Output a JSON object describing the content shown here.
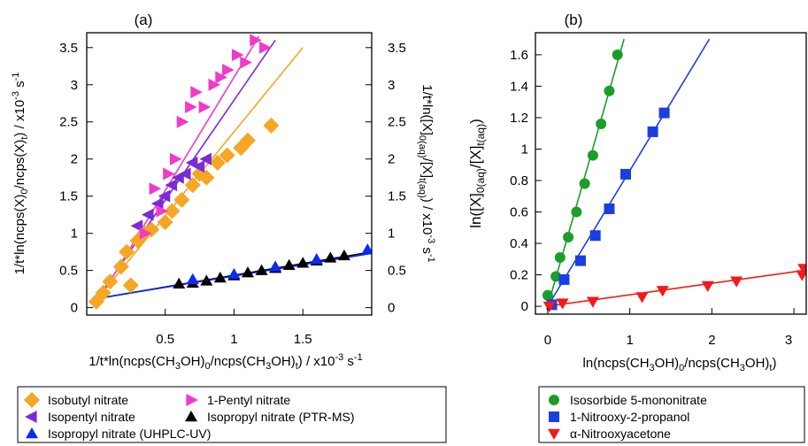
{
  "chart_data": [
    {
      "type": "scatter",
      "panel_label": "(a)",
      "xlabel": "1/t*ln(ncps(CH₃OH)₀/ncps(CH₃OH)ₜ) / x10⁻³ s⁻¹",
      "ylabel_left": "1/t*ln(ncps(X)₀/ncps(X)ₜ) / x10⁻³ s⁻¹",
      "ylabel_right": "1/t*ln([X]₀₍ₐq₎/[X]ₜ₍ₐq₎) / x10⁻³ s⁻¹",
      "xlim": [
        -0.07,
        2.0
      ],
      "ylim": [
        -0.1,
        3.7
      ],
      "xticks": [
        0.5,
        1.0,
        1.5
      ],
      "xtick_labels": [
        "0.5",
        "1",
        "1.5"
      ],
      "yticks": [
        0,
        0.5,
        1,
        1.5,
        2,
        2.5,
        3,
        3.5
      ],
      "ytick_labels": [
        "0",
        "0.5",
        "1",
        "1.5",
        "2",
        "2.5",
        "3",
        "3.5"
      ],
      "series": [
        {
          "name": "Isobutyl nitrate",
          "marker": "diamond",
          "color": "#F5A623",
          "x": [
            0.0,
            0.05,
            0.1,
            0.18,
            0.22,
            0.25,
            0.3,
            0.35,
            0.4,
            0.5,
            0.55,
            0.62,
            0.7,
            0.75,
            0.8,
            0.88,
            0.95,
            1.05,
            1.1,
            1.27
          ],
          "y": [
            0.08,
            0.2,
            0.35,
            0.55,
            0.75,
            0.3,
            0.9,
            1.0,
            1.05,
            1.15,
            1.3,
            1.45,
            1.65,
            1.8,
            1.75,
            1.95,
            2.05,
            2.15,
            2.25,
            2.45
          ],
          "fit": [
            [
              0.0,
              0.1
            ],
            [
              1.5,
              3.5
            ]
          ]
        },
        {
          "name": "Isopentyl nitrate",
          "marker": "triangle-left",
          "color": "#7B2BD6",
          "x": [
            0.3,
            0.38,
            0.45,
            0.5,
            0.55,
            0.6,
            0.65,
            0.7,
            0.75,
            0.8
          ],
          "y": [
            1.1,
            1.25,
            1.4,
            1.5,
            1.65,
            1.75,
            1.8,
            1.95,
            1.9,
            2.0
          ],
          "fit": [
            [
              0.0,
              0.1
            ],
            [
              1.3,
              3.6
            ]
          ]
        },
        {
          "name": "1-Pentyl nitrate",
          "marker": "triangle-right",
          "color": "#F03AC8",
          "x": [
            0.35,
            0.42,
            0.47,
            0.52,
            0.57,
            0.62,
            0.68,
            0.72,
            0.78,
            0.85,
            0.9,
            0.95,
            1.02,
            1.08,
            1.15,
            1.22
          ],
          "y": [
            1.0,
            1.6,
            1.3,
            1.8,
            2.0,
            2.5,
            2.7,
            2.9,
            2.7,
            3.0,
            3.1,
            3.2,
            3.4,
            3.3,
            3.6,
            3.5
          ],
          "fit": [
            [
              0.0,
              0.05
            ],
            [
              1.18,
              3.65
            ]
          ]
        },
        {
          "name": "Isopropyl nitrate (PTR-MS)",
          "marker": "triangle-up",
          "color": "#000000",
          "x": [
            0.6,
            0.7,
            0.8,
            0.9,
            1.0,
            1.1,
            1.2,
            1.3,
            1.4,
            1.5,
            1.6,
            1.7,
            1.8
          ],
          "y": [
            0.32,
            0.33,
            0.36,
            0.4,
            0.43,
            0.47,
            0.5,
            0.53,
            0.57,
            0.6,
            0.63,
            0.67,
            0.7
          ],
          "fit": [
            [
              0.0,
              0.12
            ],
            [
              2.0,
              0.75
            ]
          ]
        },
        {
          "name": "Isopropyl nitrate (UHPLC-UV)",
          "marker": "triangle-up",
          "color": "#0A2BF0",
          "x": [
            0.7,
            1.0,
            1.3,
            1.6,
            1.97
          ],
          "y": [
            0.38,
            0.45,
            0.55,
            0.65,
            0.78
          ],
          "fit": [
            [
              0.0,
              0.12
            ],
            [
              2.0,
              0.73
            ]
          ]
        }
      ]
    },
    {
      "type": "scatter",
      "panel_label": "(b)",
      "xlabel": "ln(ncps(CH₃OH)₀/ncps(CH₃OH)ₜ)",
      "ylabel": "ln([X]₀₍ₐq₎/[X]ₜ₍ₐq₎)",
      "xlim": [
        -0.15,
        3.15
      ],
      "ylim": [
        -0.05,
        1.74
      ],
      "xticks": [
        0,
        1,
        2,
        3
      ],
      "xtick_labels": [
        "0",
        "1",
        "2",
        "3"
      ],
      "yticks": [
        0,
        0.2,
        0.4,
        0.6,
        0.8,
        1.0,
        1.2,
        1.4,
        1.6
      ],
      "ytick_labels": [
        "0",
        "0.2",
        "0.4",
        "0.6",
        "0.8",
        "1",
        "1.2",
        "1.4",
        "1.6"
      ],
      "series": [
        {
          "name": "Isosorbide 5-mononitrate",
          "marker": "circle",
          "color": "#1A9E2A",
          "x": [
            0.0,
            0.1,
            0.15,
            0.25,
            0.35,
            0.45,
            0.55,
            0.65,
            0.75,
            0.85
          ],
          "y": [
            0.07,
            0.19,
            0.31,
            0.44,
            0.6,
            0.78,
            0.96,
            1.16,
            1.37,
            1.6
          ],
          "fit": [
            [
              0.0,
              0.0
            ],
            [
              0.93,
              1.7
            ]
          ]
        },
        {
          "name": "1-Nitrooxy-2-propanol",
          "marker": "square",
          "color": "#1A3FE0",
          "x": [
            0.05,
            0.2,
            0.4,
            0.58,
            0.75,
            0.95,
            1.28,
            1.42
          ],
          "y": [
            0.01,
            0.17,
            0.29,
            0.45,
            0.62,
            0.84,
            1.11,
            1.23
          ],
          "fit": [
            [
              0.0,
              0.0
            ],
            [
              1.97,
              1.7
            ]
          ]
        },
        {
          "name": "α-Nitrooxyacetone",
          "marker": "triangle-down",
          "color": "#F21A1A",
          "x": [
            0.02,
            0.18,
            0.55,
            1.15,
            1.4,
            1.95,
            2.3,
            3.1,
            3.12
          ],
          "y": [
            0.0,
            0.02,
            0.03,
            0.06,
            0.1,
            0.13,
            0.16,
            0.2,
            0.24
          ],
          "fit": [
            [
              0.0,
              0.0
            ],
            [
              3.15,
              0.23
            ]
          ]
        }
      ]
    }
  ]
}
